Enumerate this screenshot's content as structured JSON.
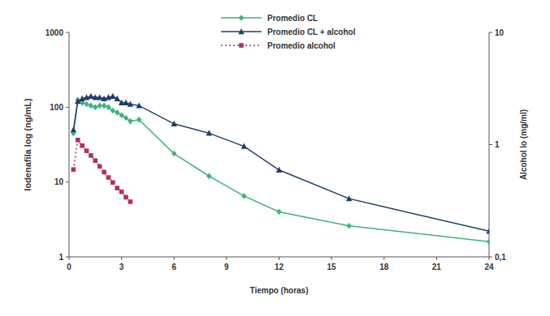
{
  "chart_data": {
    "type": "line",
    "x_label": "Tiempo (horas)",
    "y_label": "Iodenafila log (ng/mL)",
    "y2_label": "Alcohol lo (mg/ml)",
    "log": "y",
    "grid": false,
    "legend": "top",
    "xlim": [
      0,
      24
    ],
    "xticks": [
      0,
      3,
      6,
      9,
      12,
      15,
      18,
      21,
      24
    ],
    "ylim": [
      1,
      1000
    ],
    "yticks": [
      1,
      10,
      100,
      1000
    ],
    "y2lim": [
      0.1,
      10
    ],
    "y2ticks": [
      {
        "value": 0.1,
        "label": "0,1"
      },
      1,
      10
    ],
    "series": [
      {
        "name": "Promedio CL",
        "color": "#3cb37a",
        "marker": "diamond",
        "line_style": "solid",
        "x": [
          0.25,
          0.5,
          0.75,
          1,
          1.25,
          1.5,
          1.75,
          2,
          2.25,
          2.5,
          2.75,
          3,
          3.25,
          3.5,
          4,
          6,
          8,
          10,
          12,
          16,
          24
        ],
        "values": [
          45,
          125,
          115,
          110,
          105,
          100,
          105,
          105,
          100,
          90,
          85,
          78,
          72,
          65,
          68,
          24,
          12,
          6.5,
          4,
          2.6,
          1.6
        ]
      },
      {
        "name": "Promedio CL + alcohol",
        "color": "#1f3d6b",
        "marker": "triangle",
        "line_style": "solid",
        "x": [
          0.25,
          0.5,
          0.75,
          1,
          1.25,
          1.5,
          1.75,
          2,
          2.25,
          2.5,
          2.75,
          3,
          3.25,
          3.5,
          4,
          6,
          8,
          10,
          12,
          16,
          24
        ],
        "values": [
          50,
          120,
          130,
          135,
          140,
          135,
          135,
          130,
          135,
          140,
          130,
          115,
          115,
          110,
          105,
          60,
          45,
          30,
          14.5,
          6,
          2.2
        ]
      },
      {
        "name": "Promedio alcohol",
        "color": "#b03060",
        "marker": "square",
        "line_style": "dotted",
        "axis": "y2",
        "x": [
          0.25,
          0.5,
          0.75,
          1,
          1.25,
          1.5,
          1.75,
          2,
          2.25,
          2.5,
          2.75,
          3,
          3.25,
          3.5
        ],
        "values": [
          0.6,
          1.1,
          0.98,
          0.88,
          0.8,
          0.72,
          0.64,
          0.57,
          0.51,
          0.46,
          0.41,
          0.38,
          0.34,
          0.31
        ]
      }
    ]
  }
}
